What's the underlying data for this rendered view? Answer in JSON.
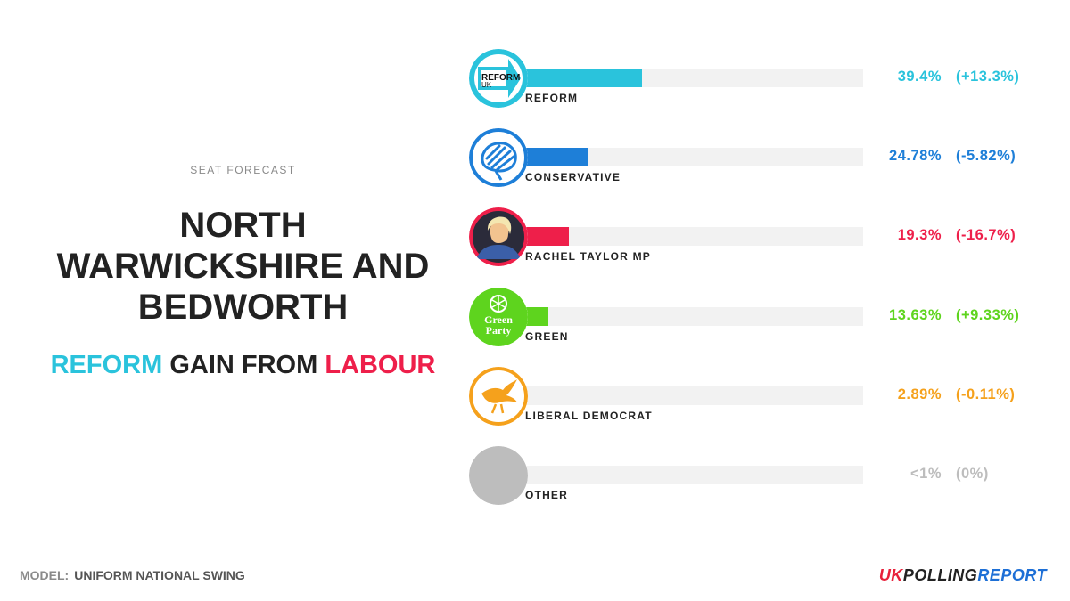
{
  "left": {
    "kicker": "SEAT FORECAST",
    "title_lines": [
      "NORTH",
      "WARWICKSHIRE AND",
      "BEDWORTH"
    ],
    "result": {
      "winner": "REFORM",
      "middle": " GAIN FROM ",
      "loser": "LABOUR"
    }
  },
  "footer": {
    "model_label": "MODEL:",
    "model_value": "UNIFORM NATIONAL SWING",
    "brand": {
      "part1": "UK",
      "part2": "POLLING",
      "part3": "REPORT"
    }
  },
  "colors": {
    "reform": "#2ac3dc",
    "conservative": "#1e7fd8",
    "rachel": "#ee1f4a",
    "green": "#5ed41e",
    "libdem": "#f5a11c",
    "other": "#bdbdbd"
  },
  "chart_data": {
    "type": "bar",
    "categories": [
      "REFORM",
      "CONSERVATIVE",
      "RACHEL TAYLOR MP",
      "GREEN",
      "LIBERAL DEMOCRAT",
      "OTHER"
    ],
    "values": [
      39.4,
      24.78,
      19.3,
      13.63,
      2.89,
      0.5
    ],
    "value_labels": [
      "39.4%",
      "24.78%",
      "19.3%",
      "13.63%",
      "2.89%",
      "<1%"
    ],
    "change_labels": [
      "(+13.3%)",
      "(-5.82%)",
      "(-16.7%)",
      "(+9.33%)",
      "(-0.11%)",
      "(0%)"
    ],
    "changes": [
      13.3,
      -5.82,
      -16.7,
      9.33,
      -0.11,
      0
    ],
    "series_colors": [
      "#2ac3dc",
      "#1e7fd8",
      "#ee1f4a",
      "#5ed41e",
      "#f5a11c",
      "#bdbdbd"
    ],
    "logo_icons": [
      "reform-uk-logo-icon",
      "conservative-tree-icon",
      "candidate-portrait-icon",
      "green-party-logo-icon",
      "libdem-bird-icon",
      "other-circle-icon"
    ],
    "reform_logo_text": [
      "REFORM",
      "UK"
    ],
    "green_logo_text": [
      "Green",
      "Party"
    ],
    "xlim": [
      0,
      100
    ]
  }
}
